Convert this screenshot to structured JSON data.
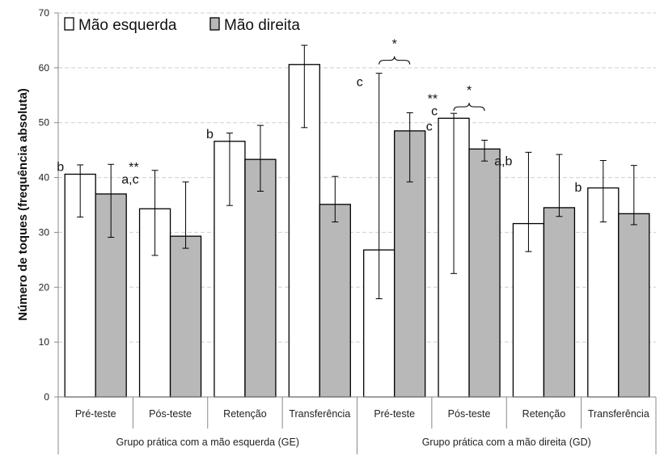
{
  "chart_data": {
    "type": "bar",
    "title": "",
    "ylabel": "Número de toques (frequência absoluta)",
    "ylim": [
      0,
      70
    ],
    "yticks": [
      0,
      10,
      20,
      30,
      40,
      50,
      60,
      70
    ],
    "grid": true,
    "legend_position": "top-left",
    "categories": [
      "Pré-teste",
      "Pós-teste",
      "Retenção",
      "Transferência",
      "Pré-teste",
      "Pós-teste",
      "Retenção",
      "Transferência"
    ],
    "groups": [
      {
        "label": "Grupo prática com a mão esquerda (GE)",
        "categories": [
          0,
          1,
          2,
          3
        ]
      },
      {
        "label": "Grupo prática com a mão direita (GD)",
        "categories": [
          4,
          5,
          6,
          7
        ]
      }
    ],
    "series": [
      {
        "name": "Mão esquerda",
        "color": "#ffffff",
        "values": [
          40.6,
          34.3,
          46.6,
          60.6,
          26.8,
          50.8,
          31.6,
          38.1
        ],
        "err_low": [
          32.8,
          25.8,
          34.9,
          49.1,
          17.9,
          22.5,
          26.5,
          31.9
        ],
        "err_high": [
          42.3,
          41.3,
          48.1,
          64.1,
          59.0,
          51.7,
          44.6,
          43.1
        ]
      },
      {
        "name": "Mão direita",
        "color": "#b8b8b8",
        "values": [
          37.0,
          29.3,
          43.3,
          35.1,
          48.5,
          45.2,
          34.5,
          33.4
        ],
        "err_low": [
          29.1,
          27.1,
          37.5,
          31.9,
          39.2,
          43.0,
          32.9,
          31.4
        ],
        "err_high": [
          42.4,
          39.2,
          49.5,
          40.2,
          51.8,
          46.8,
          44.2,
          42.2
        ]
      }
    ],
    "annotations": [
      {
        "category": 0,
        "series": 0,
        "lines": [
          "b"
        ]
      },
      {
        "category": 1,
        "series": 0,
        "lines": [
          "**",
          "a,c"
        ]
      },
      {
        "category": 2,
        "series": 0,
        "lines": [
          "b"
        ]
      },
      {
        "category": 4,
        "series": 0,
        "lines": [
          "c"
        ]
      },
      {
        "category": 4,
        "series": 1,
        "lines": [
          "c"
        ]
      },
      {
        "category": 5,
        "series": 0,
        "lines": [
          "**",
          "c"
        ]
      },
      {
        "category": 6,
        "series": 0,
        "lines": [
          "a,b"
        ]
      },
      {
        "category": 6,
        "series": 1,
        "lines": [
          "b"
        ]
      }
    ],
    "significance": [
      {
        "category": 4,
        "label": "*"
      },
      {
        "category": 5,
        "label": "*"
      }
    ]
  }
}
